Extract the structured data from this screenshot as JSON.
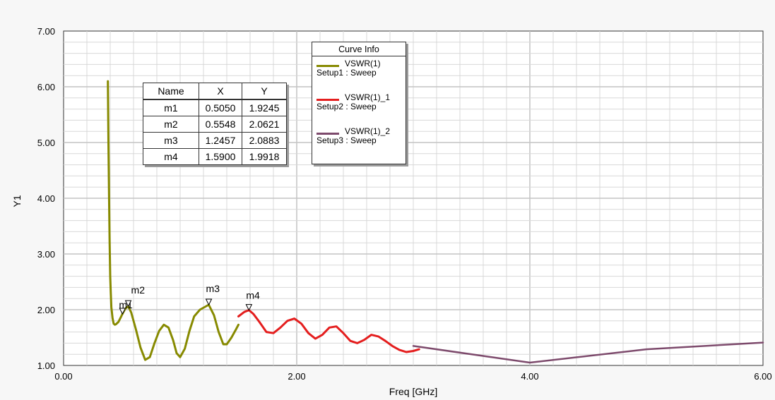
{
  "colors": {
    "vswr1": "#878a00",
    "vswr1_1": "#e41e1e",
    "vswr1_2": "#7d4a6c",
    "grid": "#d8d8d8",
    "plot_bg": "#ffffff"
  },
  "legend": {
    "title": "Curve Info",
    "entries": [
      {
        "name": "VSWR(1)",
        "setup": "Setup1 : Sweep"
      },
      {
        "name": "VSWR(1)_1",
        "setup": "Setup2 : Sweep"
      },
      {
        "name": "VSWR(1)_2",
        "setup": "Setup3 : Sweep"
      }
    ]
  },
  "marker_table": {
    "headers": [
      "Name",
      "X",
      "Y"
    ],
    "rows": [
      [
        "m1",
        "0.5050",
        "1.9245"
      ],
      [
        "m2",
        "0.5548",
        "2.0621"
      ],
      [
        "m3",
        "1.2457",
        "2.0883"
      ],
      [
        "m4",
        "1.5900",
        "1.9918"
      ]
    ]
  },
  "chart_data": {
    "type": "line",
    "xlabel": "Freq [GHz]",
    "ylabel": "Y1",
    "xlim": [
      0,
      6
    ],
    "ylim": [
      1,
      7
    ],
    "x_ticks": [
      "0.00",
      "2.00",
      "4.00",
      "6.00"
    ],
    "x_tick_values": [
      0,
      2,
      4,
      6
    ],
    "y_ticks": [
      "1.00",
      "2.00",
      "3.00",
      "4.00",
      "5.00",
      "6.00",
      "7.00"
    ],
    "y_tick_values": [
      1,
      2,
      3,
      4,
      5,
      6,
      7
    ],
    "grid": true,
    "legend_position": "top-center",
    "markers": [
      {
        "name": "m1",
        "x": 0.505,
        "y": 1.9245
      },
      {
        "name": "m2",
        "x": 0.5548,
        "y": 2.0621
      },
      {
        "name": "m3",
        "x": 1.2457,
        "y": 2.0883
      },
      {
        "name": "m4",
        "x": 1.59,
        "y": 1.9918
      }
    ],
    "series": [
      {
        "name": "VSWR(1)",
        "x": [
          0.38,
          0.385,
          0.39,
          0.395,
          0.4,
          0.405,
          0.41,
          0.42,
          0.43,
          0.44,
          0.45,
          0.47,
          0.49,
          0.505,
          0.53,
          0.555,
          0.58,
          0.62,
          0.66,
          0.7,
          0.74,
          0.78,
          0.82,
          0.86,
          0.9,
          0.94,
          0.97,
          1.0,
          1.04,
          1.08,
          1.12,
          1.17,
          1.2457,
          1.29,
          1.33,
          1.37,
          1.4,
          1.44,
          1.48,
          1.5
        ],
        "y": [
          6.1,
          5.0,
          4.0,
          3.2,
          2.6,
          2.3,
          2.05,
          1.85,
          1.75,
          1.73,
          1.74,
          1.78,
          1.86,
          1.9245,
          2.02,
          2.0621,
          1.95,
          1.65,
          1.32,
          1.1,
          1.15,
          1.4,
          1.62,
          1.73,
          1.68,
          1.45,
          1.22,
          1.15,
          1.3,
          1.62,
          1.88,
          2.0,
          2.0883,
          1.9,
          1.6,
          1.38,
          1.38,
          1.5,
          1.65,
          1.73
        ]
      },
      {
        "name": "VSWR(1)_1",
        "x": [
          1.5,
          1.55,
          1.59,
          1.63,
          1.68,
          1.74,
          1.8,
          1.86,
          1.92,
          1.98,
          2.04,
          2.1,
          2.16,
          2.22,
          2.28,
          2.34,
          2.4,
          2.46,
          2.52,
          2.58,
          2.64,
          2.7,
          2.76,
          2.82,
          2.88,
          2.94,
          3.0,
          3.05
        ],
        "y": [
          1.88,
          1.96,
          1.9918,
          1.92,
          1.78,
          1.6,
          1.58,
          1.68,
          1.8,
          1.84,
          1.75,
          1.58,
          1.48,
          1.55,
          1.68,
          1.7,
          1.58,
          1.44,
          1.4,
          1.46,
          1.55,
          1.52,
          1.44,
          1.35,
          1.28,
          1.24,
          1.26,
          1.29
        ]
      },
      {
        "name": "VSWR(1)_2",
        "x": [
          3.0,
          4.0,
          5.0,
          6.0
        ],
        "y": [
          1.35,
          1.05,
          1.29,
          1.41
        ]
      }
    ]
  }
}
